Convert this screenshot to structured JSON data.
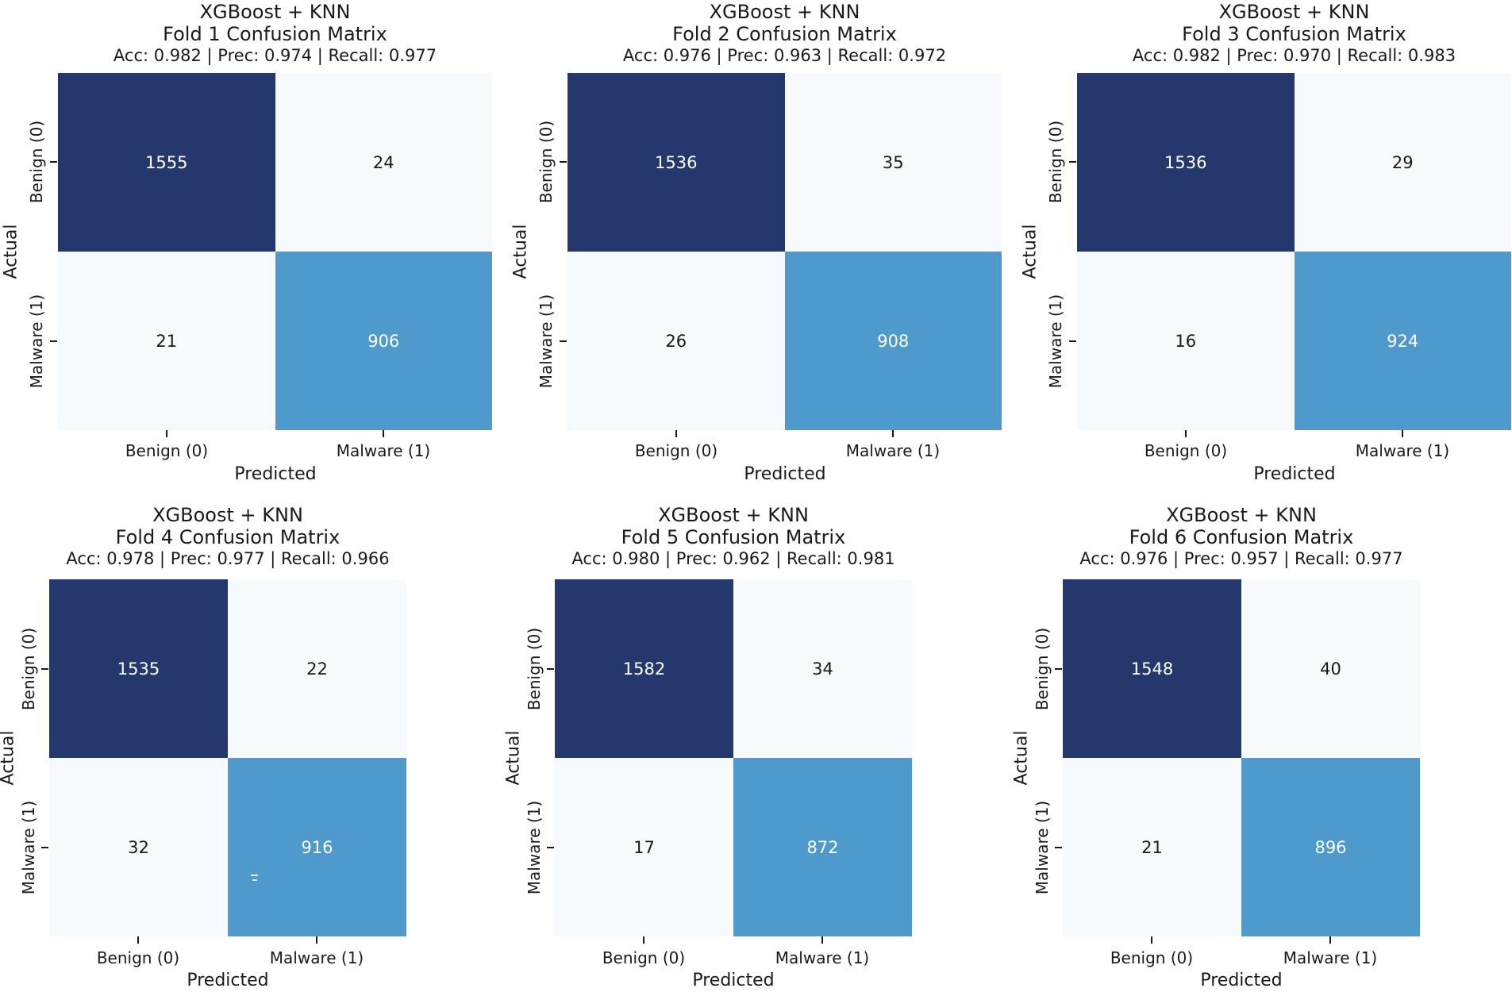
{
  "figure": {
    "colors": {
      "dark_cell": "#24386e",
      "mid_cell": "#4f9acd",
      "light_cell": "#f6fafd",
      "text": "#1a1a1a"
    }
  },
  "chart_data": [
    {
      "type": "heatmap",
      "model": "XGBoost + KNN",
      "title": "Fold 1 Confusion Matrix",
      "metrics": "Acc: 0.982 | Prec: 0.974 | Recall: 0.977",
      "accuracy": 0.982,
      "precision": 0.974,
      "recall": 0.977,
      "xlabel": "Predicted",
      "ylabel": "Actual",
      "x_categories": [
        "Benign (0)",
        "Malware (1)"
      ],
      "y_categories": [
        "Benign (0)",
        "Malware (1)"
      ],
      "values": [
        [
          1555,
          24
        ],
        [
          21,
          906
        ]
      ]
    },
    {
      "type": "heatmap",
      "model": "XGBoost + KNN",
      "title": "Fold 2 Confusion Matrix",
      "metrics": "Acc: 0.976 | Prec: 0.963 | Recall: 0.972",
      "accuracy": 0.976,
      "precision": 0.963,
      "recall": 0.972,
      "xlabel": "Predicted",
      "ylabel": "Actual",
      "x_categories": [
        "Benign (0)",
        "Malware (1)"
      ],
      "y_categories": [
        "Benign (0)",
        "Malware (1)"
      ],
      "values": [
        [
          1536,
          35
        ],
        [
          26,
          908
        ]
      ]
    },
    {
      "type": "heatmap",
      "model": "XGBoost + KNN",
      "title": "Fold 3 Confusion Matrix",
      "metrics": "Acc: 0.982 | Prec: 0.970 | Recall: 0.983",
      "accuracy": 0.982,
      "precision": 0.97,
      "recall": 0.983,
      "xlabel": "Predicted",
      "ylabel": "Actual",
      "x_categories": [
        "Benign (0)",
        "Malware (1)"
      ],
      "y_categories": [
        "Benign (0)",
        "Malware (1)"
      ],
      "values": [
        [
          1536,
          29
        ],
        [
          16,
          924
        ]
      ]
    },
    {
      "type": "heatmap",
      "model": "XGBoost + KNN",
      "title": "Fold 4 Confusion Matrix",
      "metrics": "Acc: 0.978 | Prec: 0.977 | Recall: 0.966",
      "accuracy": 0.978,
      "precision": 0.977,
      "recall": 0.966,
      "xlabel": "Predicted",
      "ylabel": "Actual",
      "x_categories": [
        "Benign (0)",
        "Malware (1)"
      ],
      "y_categories": [
        "Benign (0)",
        "Malware (1)"
      ],
      "values": [
        [
          1535,
          22
        ],
        [
          32,
          916
        ]
      ]
    },
    {
      "type": "heatmap",
      "model": "XGBoost + KNN",
      "title": "Fold 5 Confusion Matrix",
      "metrics": "Acc: 0.980 | Prec: 0.962 | Recall: 0.981",
      "accuracy": 0.98,
      "precision": 0.962,
      "recall": 0.981,
      "xlabel": "Predicted",
      "ylabel": "Actual",
      "x_categories": [
        "Benign (0)",
        "Malware (1)"
      ],
      "y_categories": [
        "Benign (0)",
        "Malware (1)"
      ],
      "values": [
        [
          1582,
          34
        ],
        [
          17,
          872
        ]
      ]
    },
    {
      "type": "heatmap",
      "model": "XGBoost + KNN",
      "title": "Fold 6 Confusion Matrix",
      "metrics": "Acc: 0.976 | Prec: 0.957 | Recall: 0.977",
      "accuracy": 0.976,
      "precision": 0.957,
      "recall": 0.977,
      "xlabel": "Predicted",
      "ylabel": "Actual",
      "x_categories": [
        "Benign (0)",
        "Malware (1)"
      ],
      "y_categories": [
        "Benign (0)",
        "Malware (1)"
      ],
      "values": [
        [
          1548,
          40
        ],
        [
          21,
          896
        ]
      ]
    }
  ]
}
